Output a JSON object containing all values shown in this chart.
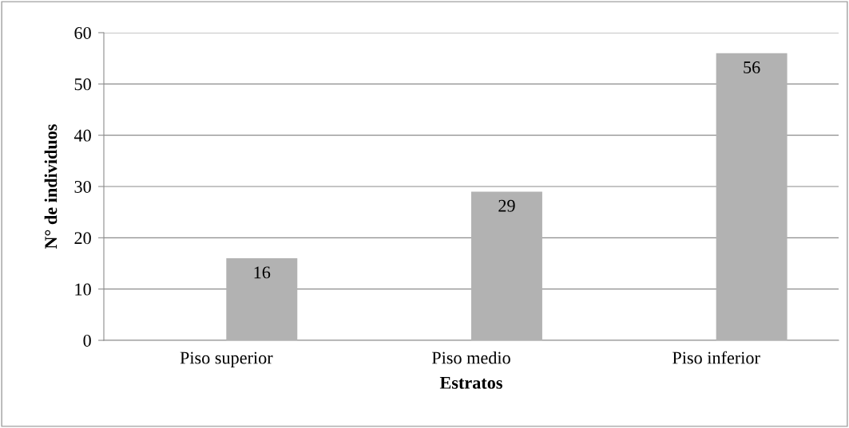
{
  "chart_data": {
    "type": "bar",
    "xlabel": "Estratos",
    "ylabel": "N° de individuos",
    "categories": [
      "Piso superior",
      "Piso medio",
      "Piso inferior"
    ],
    "values": [
      16,
      29,
      56
    ],
    "color": "#b2b2b2",
    "ylim": [
      0,
      60
    ],
    "yticks": [
      0,
      10,
      20,
      30,
      40,
      50,
      60
    ],
    "grid": "y",
    "data_labels": true
  }
}
